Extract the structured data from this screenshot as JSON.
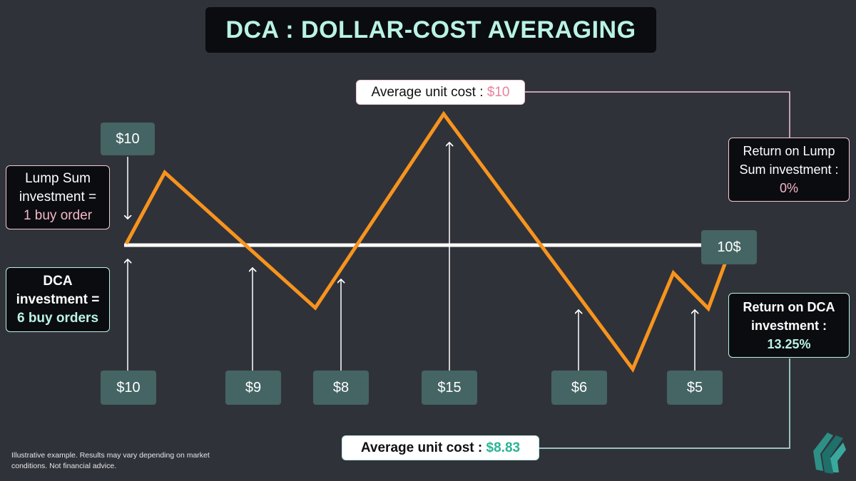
{
  "title": "DCA : DOLLAR-COST AVERAGING",
  "lump_sum_price": "$10",
  "lump_sum_box": {
    "line1": "Lump Sum",
    "line2": "investment =",
    "line3": "1 buy order"
  },
  "dca_box": {
    "line1": "DCA",
    "line2": "investment =",
    "line3": "6 buy orders"
  },
  "reference_label": "10$",
  "avg_cost_lump": {
    "label": "Average unit cost : ",
    "value": "$10"
  },
  "avg_cost_dca": {
    "label": "Average unit cost : ",
    "value": "$8.83"
  },
  "return_lump": {
    "line1": "Return on Lump",
    "line2": "Sum investment :",
    "value": "0%"
  },
  "return_dca": {
    "line1": "Return on DCA",
    "line2": "investment :",
    "value": "13.25%"
  },
  "disclaimer": "Illustrative example. Results may vary depending on market conditions. Not financial advice.",
  "colors": {
    "background": "#30323a",
    "price_line": "#f7941d",
    "mint": "#b9f3e3",
    "pink": "#f5b8c8",
    "price_box": "#456464"
  },
  "chart_data": {
    "type": "line",
    "title": "DCA : DOLLAR-COST AVERAGING",
    "reference_price": 10,
    "buy_orders": [
      {
        "label": "$10",
        "price": 10
      },
      {
        "label": "$9",
        "price": 9
      },
      {
        "label": "$8",
        "price": 8
      },
      {
        "label": "$15",
        "price": 15
      },
      {
        "label": "$6",
        "price": 6
      },
      {
        "label": "$5",
        "price": 5
      }
    ]
  }
}
